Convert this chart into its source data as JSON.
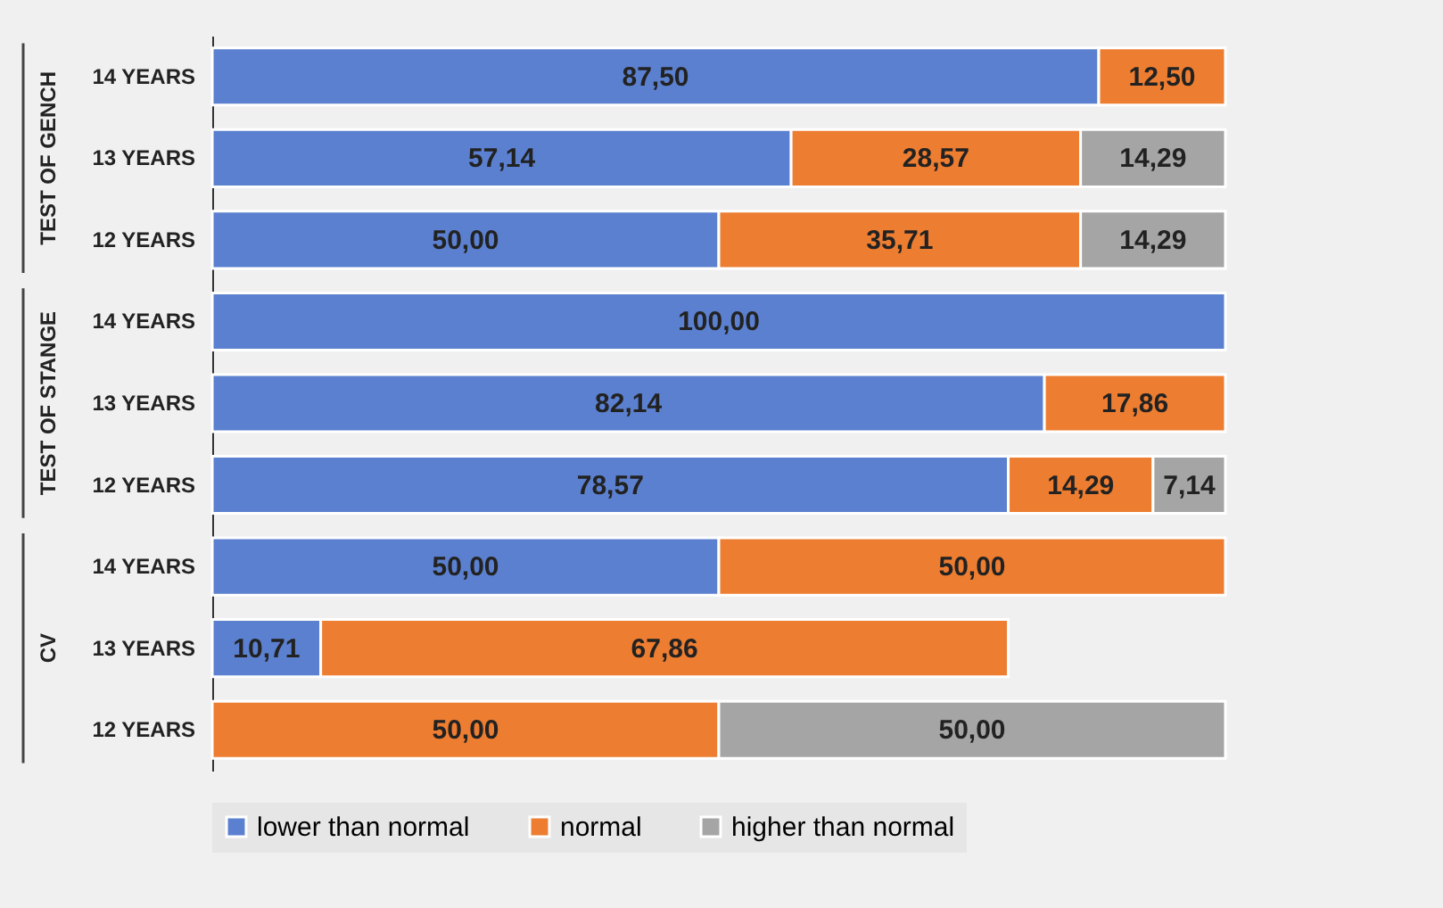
{
  "chart_data": {
    "type": "bar",
    "orientation": "horizontal",
    "stacked": true,
    "legend": "bottom",
    "categories": [
      "14 YEARS",
      "13 YEARS",
      "12 YEARS",
      "14 YEARS",
      "13 YEARS",
      "12 YEARS",
      "14 YEARS",
      "13 YEARS",
      "12 YEARS"
    ],
    "annotations": [
      "TEST OF GENCH",
      "TEST OF STANGE",
      "CV"
    ],
    "series": [
      {
        "name": "lower than normal",
        "color": "#5b80cf",
        "values": [
          87.5,
          57.14,
          50.0,
          100.0,
          82.14,
          78.57,
          50.0,
          10.71,
          null
        ],
        "value_labels": [
          "87,50",
          "57,14",
          "50,00",
          "100,00",
          "82,14",
          "78,57",
          "50,00",
          "10,71",
          null
        ]
      },
      {
        "name": "normal",
        "color": "#ed7d31",
        "values": [
          12.5,
          28.57,
          35.71,
          null,
          17.86,
          14.29,
          50.0,
          67.86,
          50.0
        ],
        "value_labels": [
          "12,50",
          "28,57",
          "35,71",
          null,
          "17,86",
          "14,29",
          "50,00",
          "67,86",
          "50,00"
        ]
      },
      {
        "name": "higher than normal",
        "color": "#a5a5a5",
        "values": [
          null,
          14.29,
          14.29,
          null,
          null,
          7.14,
          null,
          null,
          50.0
        ],
        "value_labels": [
          null,
          "14,29",
          "14,29",
          null,
          null,
          "7,14",
          null,
          null,
          "50,00"
        ]
      }
    ]
  }
}
